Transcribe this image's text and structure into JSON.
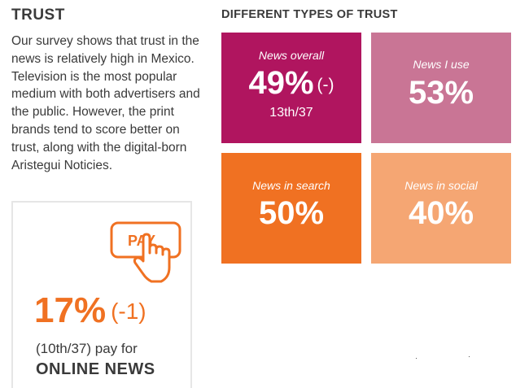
{
  "trust": {
    "heading": "TRUST",
    "body": "Our survey shows that trust in the news is relatively high in Mexico. Television is the most popular medium with both advertisers and the public. However, the print brands tend to score better on trust, along with the digital-born Aristegui Noticies."
  },
  "pay": {
    "icon_label": "PAY",
    "percent": "17%",
    "change": "(-1)",
    "rank_line": "(10th/37) pay for",
    "topic": "ONLINE NEWS"
  },
  "types": {
    "heading": "DIFFERENT TYPES OF TRUST",
    "tiles": [
      {
        "label": "News overall",
        "value": "49%",
        "change": "(-)",
        "rank": "13th/37",
        "color": "#b0155f"
      },
      {
        "label": "News I use",
        "value": "53%",
        "color": "#c97595"
      },
      {
        "label": "News in search",
        "value": "50%",
        "color": "#f07122"
      },
      {
        "label": "News in social",
        "value": "40%",
        "color": "#f5a673"
      }
    ]
  },
  "colors": {
    "accent_orange": "#f07122",
    "text": "#3a3a3a"
  }
}
